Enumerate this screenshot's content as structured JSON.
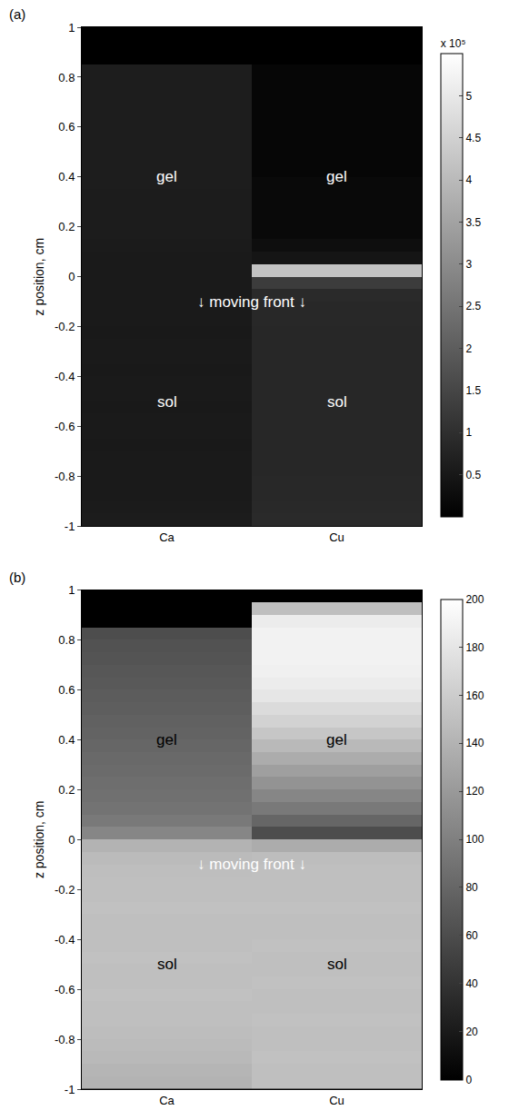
{
  "chart_data": [
    {
      "type": "heatmap",
      "title": "(a)",
      "ylabel": "z position, cm",
      "categories": [
        "Ca",
        "Cu"
      ],
      "y": [
        -0.975,
        -0.925,
        -0.875,
        -0.825,
        -0.775,
        -0.725,
        -0.675,
        -0.625,
        -0.575,
        -0.525,
        -0.475,
        -0.425,
        -0.375,
        -0.325,
        -0.275,
        -0.225,
        -0.175,
        -0.125,
        -0.075,
        -0.025,
        0.025,
        0.075,
        0.125,
        0.175,
        0.225,
        0.275,
        0.325,
        0.375,
        0.425,
        0.475,
        0.525,
        0.575,
        0.625,
        0.675,
        0.725,
        0.775,
        0.825,
        0.875,
        0.925,
        0.975
      ],
      "cells": [
        [
          60000,
          90000
        ],
        [
          58000,
          88000
        ],
        [
          57000,
          87000
        ],
        [
          56000,
          86000
        ],
        [
          55000,
          85000
        ],
        [
          55000,
          85000
        ],
        [
          54000,
          84000
        ],
        [
          55000,
          85000
        ],
        [
          55000,
          84000
        ],
        [
          54000,
          85000
        ],
        [
          55000,
          85000
        ],
        [
          55000,
          84000
        ],
        [
          54000,
          85000
        ],
        [
          55000,
          85000
        ],
        [
          55000,
          84000
        ],
        [
          54000,
          85000
        ],
        [
          55000,
          86000
        ],
        [
          55000,
          87000
        ],
        [
          55000,
          90000
        ],
        [
          55000,
          130000
        ],
        [
          55000,
          420000
        ],
        [
          57000,
          45000
        ],
        [
          58000,
          30000
        ],
        [
          60000,
          20000
        ],
        [
          60000,
          20000
        ],
        [
          61000,
          20000
        ],
        [
          61000,
          20000
        ],
        [
          62000,
          20000
        ],
        [
          62000,
          12000
        ],
        [
          62000,
          12000
        ],
        [
          62000,
          12000
        ],
        [
          62000,
          12000
        ],
        [
          62000,
          12000
        ],
        [
          62000,
          12000
        ],
        [
          62000,
          12000
        ],
        [
          62000,
          12000
        ],
        [
          62000,
          12000
        ],
        [
          0,
          0
        ],
        [
          0,
          0
        ],
        [
          0,
          0
        ]
      ],
      "ylim": [
        -1,
        1
      ],
      "yticks": [
        -1,
        -0.8,
        -0.6,
        -0.4,
        -0.2,
        0,
        0.2,
        0.4,
        0.6,
        0.8,
        1
      ],
      "colorbar": {
        "title": "x 10⁵",
        "range": [
          0,
          550000
        ],
        "ticks": [
          {
            "value": 50000,
            "label": "0.5"
          },
          {
            "value": 100000,
            "label": "1"
          },
          {
            "value": 150000,
            "label": "1.5"
          },
          {
            "value": 200000,
            "label": "2"
          },
          {
            "value": 250000,
            "label": "2.5"
          },
          {
            "value": 300000,
            "label": "3"
          },
          {
            "value": 350000,
            "label": "3.5"
          },
          {
            "value": 400000,
            "label": "4"
          },
          {
            "value": 450000,
            "label": "4.5"
          },
          {
            "value": 500000,
            "label": "5"
          }
        ]
      },
      "annotations": [
        {
          "text": "gel",
          "category": "Ca",
          "y": 0.4,
          "color": "white"
        },
        {
          "text": "gel",
          "category": "Cu",
          "y": 0.4,
          "color": "white"
        },
        {
          "text": "↓ moving front ↓",
          "y": -0.1,
          "color": "white"
        },
        {
          "text": "sol",
          "category": "Ca",
          "y": -0.5,
          "color": "white"
        },
        {
          "text": "sol",
          "category": "Cu",
          "y": -0.5,
          "color": "white"
        }
      ]
    },
    {
      "type": "heatmap",
      "title": "(b)",
      "ylabel": "z position, cm",
      "categories": [
        "Ca",
        "Cu"
      ],
      "y": [
        -0.975,
        -0.925,
        -0.875,
        -0.825,
        -0.775,
        -0.725,
        -0.675,
        -0.625,
        -0.575,
        -0.525,
        -0.475,
        -0.425,
        -0.375,
        -0.325,
        -0.275,
        -0.225,
        -0.175,
        -0.125,
        -0.075,
        -0.025,
        0.025,
        0.075,
        0.125,
        0.175,
        0.225,
        0.275,
        0.325,
        0.375,
        0.425,
        0.475,
        0.525,
        0.575,
        0.625,
        0.675,
        0.725,
        0.775,
        0.825,
        0.875,
        0.925,
        0.975
      ],
      "cells": [
        [
          140,
          150
        ],
        [
          142,
          150
        ],
        [
          145,
          151
        ],
        [
          147,
          150
        ],
        [
          148,
          150
        ],
        [
          150,
          151
        ],
        [
          150,
          150
        ],
        [
          151,
          150
        ],
        [
          150,
          151
        ],
        [
          150,
          150
        ],
        [
          151,
          150
        ],
        [
          150,
          151
        ],
        [
          150,
          150
        ],
        [
          150,
          150
        ],
        [
          151,
          151
        ],
        [
          150,
          150
        ],
        [
          150,
          150
        ],
        [
          149,
          150
        ],
        [
          147,
          148
        ],
        [
          140,
          135
        ],
        [
          105,
          60
        ],
        [
          95,
          80
        ],
        [
          90,
          95
        ],
        [
          88,
          105
        ],
        [
          86,
          115
        ],
        [
          84,
          125
        ],
        [
          82,
          135
        ],
        [
          80,
          145
        ],
        [
          78,
          155
        ],
        [
          76,
          165
        ],
        [
          74,
          172
        ],
        [
          72,
          180
        ],
        [
          70,
          185
        ],
        [
          68,
          188
        ],
        [
          66,
          190
        ],
        [
          64,
          190
        ],
        [
          60,
          190
        ],
        [
          0,
          185
        ],
        [
          0,
          150
        ],
        [
          0,
          0
        ]
      ],
      "ylim": [
        -1,
        1
      ],
      "yticks": [
        -1,
        -0.8,
        -0.6,
        -0.4,
        -0.2,
        0,
        0.2,
        0.4,
        0.6,
        0.8,
        1
      ],
      "colorbar": {
        "range": [
          0,
          200
        ],
        "ticks": [
          0,
          20,
          40,
          60,
          80,
          100,
          120,
          140,
          160,
          180,
          200
        ]
      },
      "annotations": [
        {
          "text": "gel",
          "category": "Ca",
          "y": 0.4,
          "color": "black"
        },
        {
          "text": "gel",
          "category": "Cu",
          "y": 0.4,
          "color": "black"
        },
        {
          "text": "↓ moving front ↓",
          "y": -0.1,
          "color": "white"
        },
        {
          "text": "sol",
          "category": "Ca",
          "y": -0.5,
          "color": "black"
        },
        {
          "text": "sol",
          "category": "Cu",
          "y": -0.5,
          "color": "black"
        }
      ]
    }
  ]
}
